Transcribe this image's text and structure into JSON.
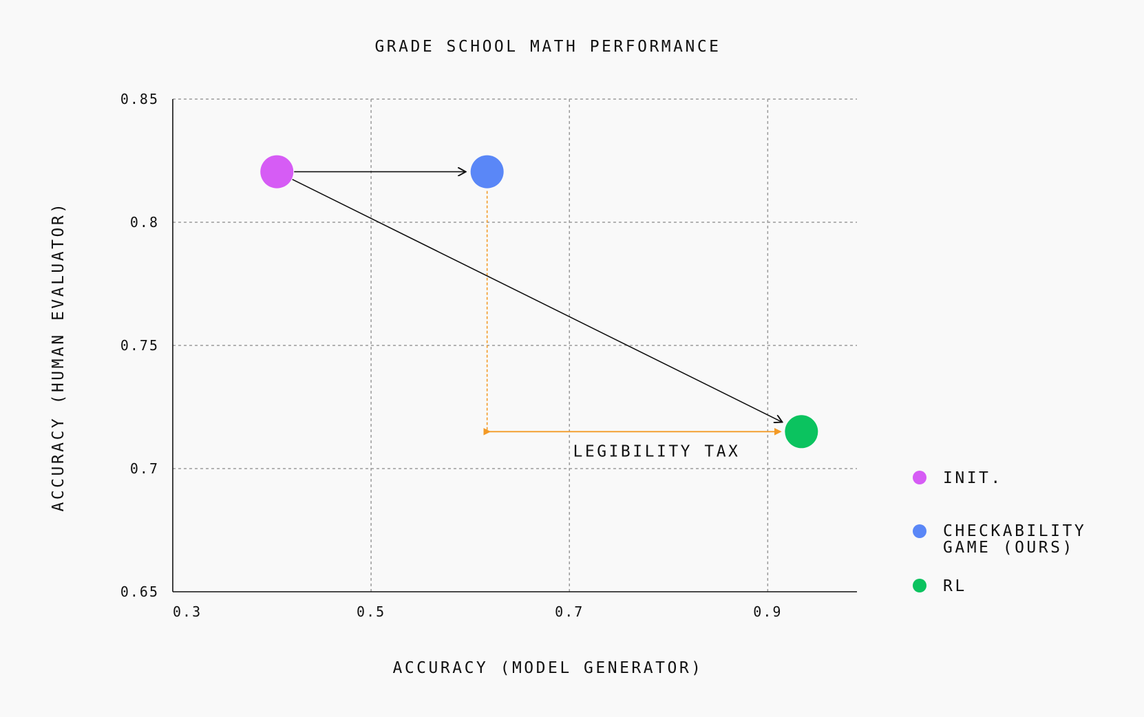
{
  "chart_data": {
    "type": "scatter",
    "title": "GRADE SCHOOL MATH PERFORMANCE",
    "xlabel": "ACCURACY (MODEL GENERATOR)",
    "ylabel": "ACCURACY (HUMAN EVALUATOR)",
    "xlim": [
      0.3,
      0.99
    ],
    "ylim": [
      0.65,
      0.85
    ],
    "xticks": [
      0.3,
      0.5,
      0.7,
      0.9
    ],
    "xtick_labels": [
      "0.3",
      "0.5",
      "0.7",
      "0.9"
    ],
    "yticks": [
      0.85,
      0.8,
      0.75,
      0.7,
      0.65
    ],
    "ytick_labels": [
      "0.85",
      "0.8",
      "0.75",
      "0.7",
      "0.65"
    ],
    "grid": true,
    "legend_position": "right",
    "series": [
      {
        "name": "INIT.",
        "color": "#d65cf5",
        "x": 0.405,
        "y": 0.8205
      },
      {
        "name": "CHECKABILITY GAME (OURS)",
        "color": "#5a87f7",
        "x": 0.617,
        "y": 0.8205
      },
      {
        "name": "RL",
        "color": "#0bc35f",
        "x": 0.934,
        "y": 0.715
      }
    ],
    "arrows": [
      {
        "from": "INIT.",
        "to": "CHECKABILITY GAME (OURS)"
      },
      {
        "from": "INIT.",
        "to": "RL"
      }
    ],
    "annotations": [
      {
        "text": "LEGIBILITY TAX",
        "x_from": 0.617,
        "x_to": 0.934,
        "y": 0.715,
        "color": "#f39a26"
      }
    ]
  }
}
